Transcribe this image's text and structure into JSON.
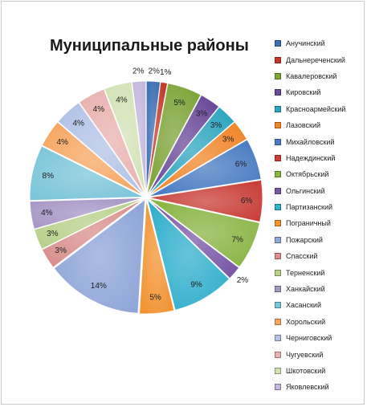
{
  "chart_data": {
    "type": "pie",
    "title": "Муниципальные районы",
    "legend_position": "right",
    "categories": [
      "Анучинский",
      "Дальнереченский",
      "Кавалеровский",
      "Кировский",
      "Красноармейский",
      "Лазовский",
      "Михайловский",
      "Надеждинский",
      "Октябрьский",
      "Ольгинский",
      "Партизанский",
      "Пограничный",
      "Пожарский",
      "Спасский",
      "Терненский",
      "Ханкайский",
      "Хасанский",
      "Хорольский",
      "Черниговский",
      "Чугуевский",
      "Шкотовский",
      "Яковлевский"
    ],
    "values": [
      2,
      1,
      5,
      3,
      3,
      3,
      6,
      6,
      7,
      2,
      9,
      5,
      14,
      3,
      3,
      4,
      8,
      4,
      4,
      4,
      4,
      2
    ],
    "labels": [
      "2%",
      "1%",
      "5%",
      "3%",
      "3%",
      "3%",
      "6%",
      "6%",
      "7%",
      "2%",
      "9%",
      "5%",
      "14%",
      "3%",
      "3%",
      "4%",
      "8%",
      "4%",
      "4%",
      "4%",
      "4%",
      "2%"
    ],
    "colors": [
      "#3f6fb3",
      "#c0392b",
      "#7ea43a",
      "#6b4a9a",
      "#2fa6c0",
      "#f0872c",
      "#4a7cc2",
      "#c9403a",
      "#8ab545",
      "#7a58a8",
      "#33b0cc",
      "#f29434",
      "#8fa6d8",
      "#d9908e",
      "#b9d08c",
      "#a797c6",
      "#7dc6d9",
      "#f6a763",
      "#b3c3e6",
      "#e8b3b1",
      "#d3e2b6",
      "#c3b7dc"
    ]
  }
}
